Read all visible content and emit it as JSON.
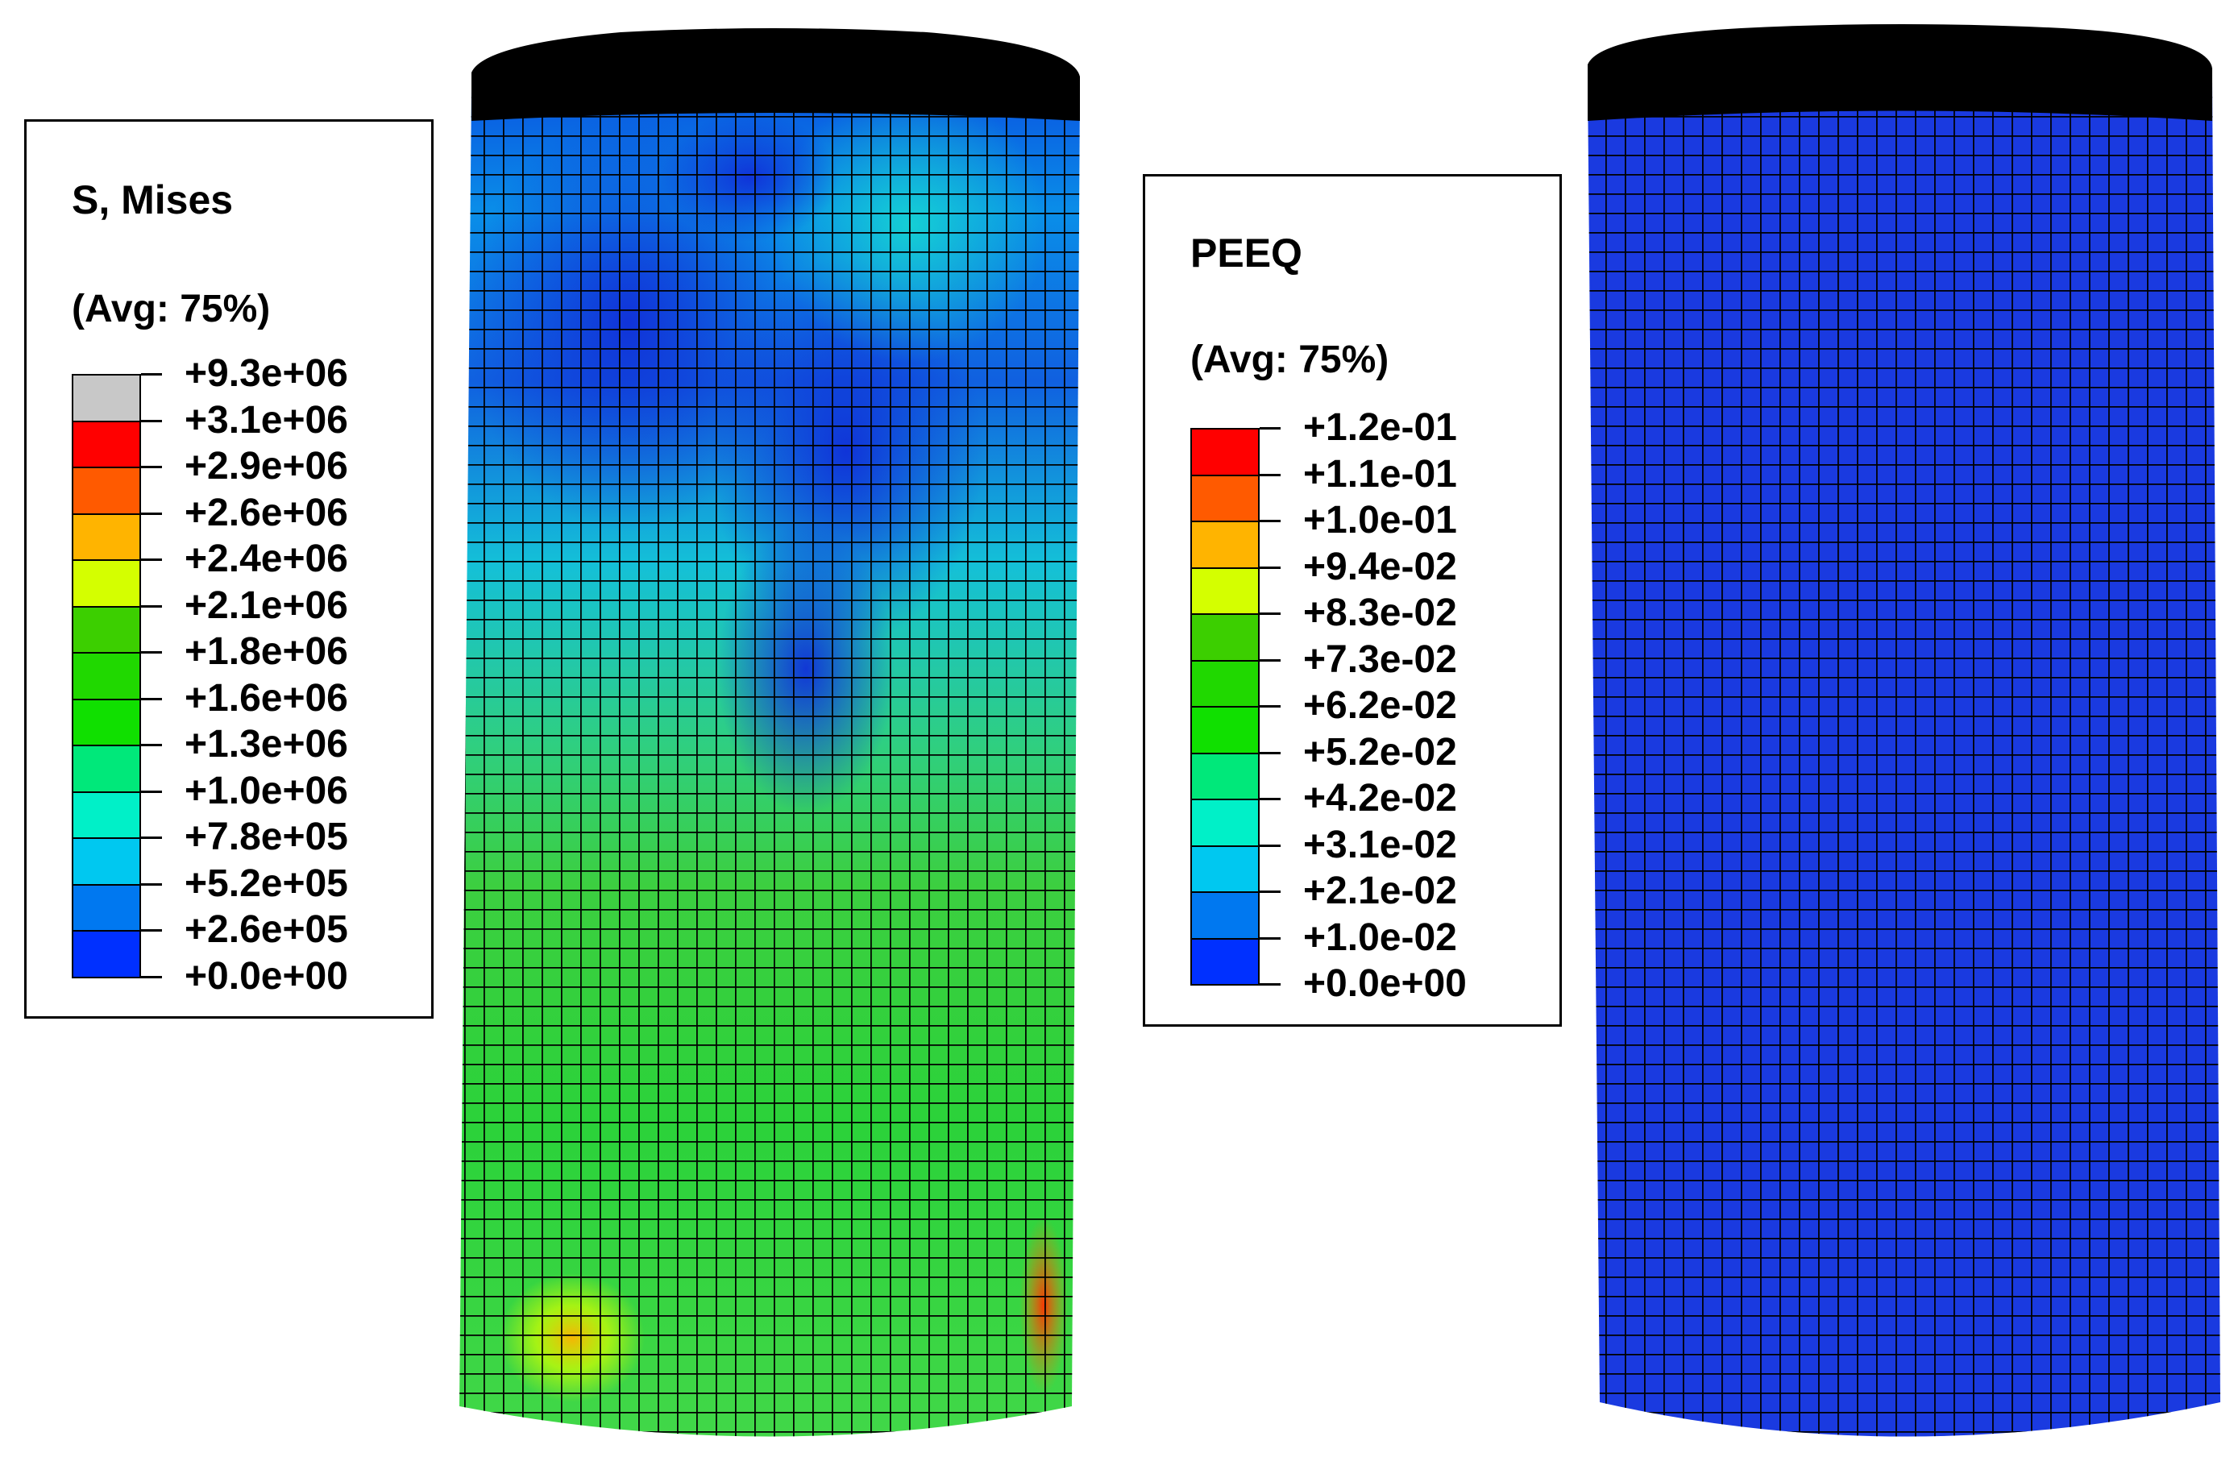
{
  "left_panel": {
    "field": "S, Mises",
    "averaging": "(Avg: 75%)",
    "contour_levels": [
      {
        "label": "+9.3e+06",
        "color": "#c8c8c8"
      },
      {
        "label": "+3.1e+06",
        "color": "#ff0000"
      },
      {
        "label": "+2.9e+06",
        "color": "#ff5a00"
      },
      {
        "label": "+2.6e+06",
        "color": "#ffb400"
      },
      {
        "label": "+2.4e+06",
        "color": "#d4ff00"
      },
      {
        "label": "+2.1e+06",
        "color": "#3ccf00"
      },
      {
        "label": "+1.8e+06",
        "color": "#20d800"
      },
      {
        "label": "+1.6e+06",
        "color": "#10e000"
      },
      {
        "label": "+1.3e+06",
        "color": "#00e87a"
      },
      {
        "label": "+1.0e+06",
        "color": "#00f0c8"
      },
      {
        "label": "+7.8e+05",
        "color": "#00c8f0"
      },
      {
        "label": "+5.2e+05",
        "color": "#0078f0"
      },
      {
        "label": "+2.6e+05",
        "color": "#0030ff"
      }
    ],
    "bottom_label": "+0.0e+00"
  },
  "right_panel": {
    "field": "PEEQ",
    "averaging": "(Avg: 75%)",
    "contour_levels": [
      {
        "label": "+1.2e-01",
        "color": "#ff0000"
      },
      {
        "label": "+1.1e-01",
        "color": "#ff5a00"
      },
      {
        "label": "+1.0e-01",
        "color": "#ffb400"
      },
      {
        "label": "+9.4e-02",
        "color": "#d4ff00"
      },
      {
        "label": "+8.3e-02",
        "color": "#3ccf00"
      },
      {
        "label": "+7.3e-02",
        "color": "#20d800"
      },
      {
        "label": "+6.2e-02",
        "color": "#10e000"
      },
      {
        "label": "+5.2e-02",
        "color": "#00e87a"
      },
      {
        "label": "+4.2e-02",
        "color": "#00f0c8"
      },
      {
        "label": "+3.1e-02",
        "color": "#00c8f0"
      },
      {
        "label": "+2.1e-02",
        "color": "#0078f0"
      },
      {
        "label": "+1.0e-02",
        "color": "#0030ff"
      }
    ],
    "bottom_label": "+0.0e+00"
  },
  "colors": {
    "mesh_line": "#000000",
    "peeq_body": "#1a3ae0",
    "background": "#ffffff"
  }
}
